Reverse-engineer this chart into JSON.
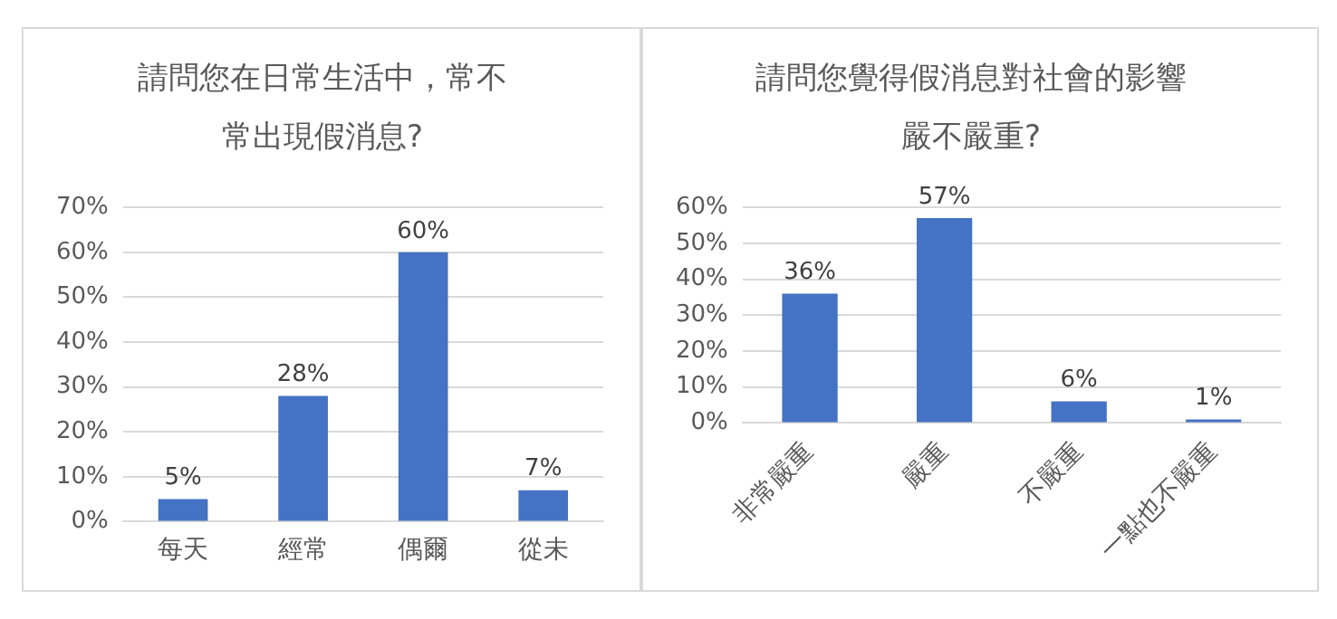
{
  "chart_data": [
    {
      "type": "bar",
      "title": "請問您在日常生活中，常不常出現假消息?",
      "categories": [
        "每天",
        "經常",
        "偶爾",
        "從未"
      ],
      "values": [
        5,
        28,
        60,
        7
      ],
      "color": "#4472c4",
      "value_labels": [
        "5%",
        "28%",
        "60%",
        "7%"
      ],
      "ylim": [
        0,
        70
      ],
      "yticks": [
        {
          "value": 0,
          "label": "0%"
        },
        {
          "value": 10,
          "label": "10%"
        },
        {
          "value": 20,
          "label": "20%"
        },
        {
          "value": 30,
          "label": "30%"
        },
        {
          "value": 40,
          "label": "40%"
        },
        {
          "value": 50,
          "label": "50%"
        },
        {
          "value": 60,
          "label": "60%"
        },
        {
          "value": 70,
          "label": "70%"
        }
      ],
      "grid": "y",
      "legend": false
    },
    {
      "type": "bar",
      "title": "請問您覺得假消息對社會的影響嚴不嚴重?",
      "categories": [
        "非常嚴重",
        "嚴重",
        "不嚴重",
        "一點也不嚴重"
      ],
      "values": [
        36,
        57,
        6,
        1
      ],
      "color": "#4472c4",
      "value_labels": [
        "36%",
        "57%",
        "6%",
        "1%"
      ],
      "ylim": [
        0,
        60
      ],
      "yticks": [
        {
          "value": 0,
          "label": "0%"
        },
        {
          "value": 10,
          "label": "10%"
        },
        {
          "value": 20,
          "label": "20%"
        },
        {
          "value": 30,
          "label": "30%"
        },
        {
          "value": 40,
          "label": "40%"
        },
        {
          "value": 50,
          "label": "50%"
        },
        {
          "value": 60,
          "label": "60%"
        }
      ],
      "grid": "y",
      "legend": false
    }
  ]
}
